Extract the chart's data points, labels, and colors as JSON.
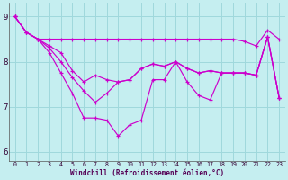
{
  "xlabel": "Windchill (Refroidissement éolien,°C)",
  "xlim": [
    -0.5,
    23.5
  ],
  "ylim": [
    5.8,
    9.3
  ],
  "yticks": [
    6,
    7,
    8,
    9
  ],
  "xticks": [
    0,
    1,
    2,
    3,
    4,
    5,
    6,
    7,
    8,
    9,
    10,
    11,
    12,
    13,
    14,
    15,
    16,
    17,
    18,
    19,
    20,
    21,
    22,
    23
  ],
  "bg_color": "#c5eef0",
  "grid_color": "#9fd8dc",
  "line_color": "#cc00cc",
  "series": [
    [
      9.0,
      8.65,
      8.5,
      8.5,
      8.5,
      8.5,
      8.5,
      8.5,
      8.5,
      8.5,
      8.5,
      8.5,
      8.5,
      8.5,
      8.5,
      8.5,
      8.5,
      8.5,
      8.5,
      8.5,
      8.45,
      8.35,
      8.7,
      8.5
    ],
    [
      9.0,
      8.65,
      8.5,
      8.35,
      8.2,
      7.8,
      7.55,
      7.7,
      7.6,
      7.55,
      7.6,
      7.85,
      7.95,
      7.9,
      8.0,
      7.85,
      7.75,
      7.8,
      7.75,
      7.75,
      7.75,
      7.7,
      8.55,
      7.2
    ],
    [
      9.0,
      8.65,
      8.5,
      8.3,
      8.0,
      7.65,
      7.35,
      7.1,
      7.3,
      7.55,
      7.6,
      7.85,
      7.95,
      7.9,
      8.0,
      7.85,
      7.75,
      7.8,
      7.75,
      7.75,
      7.75,
      7.7,
      8.55,
      7.2
    ],
    [
      9.0,
      8.65,
      8.5,
      8.2,
      7.75,
      7.3,
      6.75,
      6.75,
      6.7,
      6.35,
      6.6,
      6.7,
      7.6,
      7.6,
      8.0,
      7.55,
      7.25,
      7.15,
      7.75,
      7.75,
      7.75,
      7.7,
      8.55,
      7.2
    ]
  ]
}
